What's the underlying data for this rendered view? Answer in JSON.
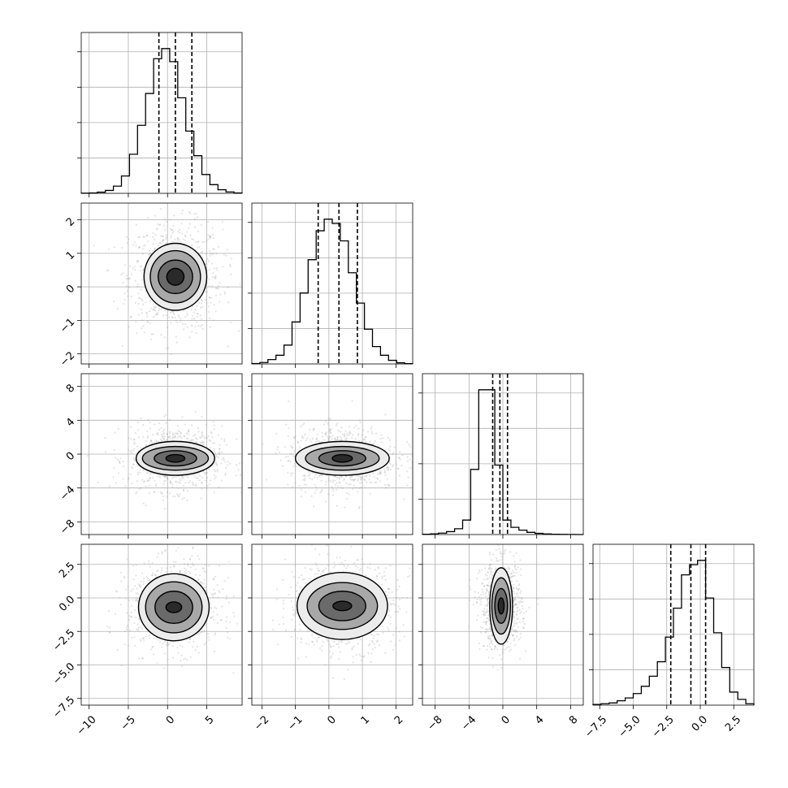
{
  "chart_data": {
    "type": "corner",
    "title": "",
    "parameters": [
      {
        "range": [
          -11,
          9.5
        ],
        "ticks": [
          -10,
          -5,
          0,
          5
        ],
        "tick_labels": [
          "−10",
          "−5",
          "0",
          "5"
        ],
        "hist": [
          0.001,
          0.003,
          0.008,
          0.02,
          0.05,
          0.12,
          0.27,
          0.47,
          0.69,
          0.93,
          1.0,
          0.91,
          0.66,
          0.43,
          0.26,
          0.13,
          0.06,
          0.025,
          0.01,
          0.003
        ],
        "quantiles": [
          -1.1,
          1.0,
          3.1
        ]
      },
      {
        "range": [
          -2.3,
          2.5
        ],
        "ticks": [
          -2,
          -1,
          0,
          1,
          2
        ],
        "tick_labels": [
          "−2",
          "−1",
          "0",
          "1",
          "2"
        ],
        "hist": [
          0.003,
          0.01,
          0.03,
          0.06,
          0.13,
          0.29,
          0.49,
          0.72,
          0.92,
          1.0,
          0.97,
          0.85,
          0.63,
          0.42,
          0.24,
          0.12,
          0.06,
          0.025,
          0.008,
          0.002
        ],
        "quantiles": [
          -0.32,
          0.3,
          0.85
        ]
      },
      {
        "range": [
          -9.5,
          9.5
        ],
        "ticks": [
          -8,
          -4,
          0,
          4,
          8
        ],
        "tick_labels": [
          "−8",
          "−4",
          "0",
          "4",
          "8"
        ],
        "hist": [
          0.002,
          0.005,
          0.01,
          0.02,
          0.04,
          0.1,
          0.45,
          1.0,
          1.0,
          0.48,
          0.1,
          0.05,
          0.03,
          0.015,
          0.008,
          0.004,
          0.002,
          0.001,
          0.0005,
          0.0002
        ],
        "quantiles": [
          -1.2,
          -0.35,
          0.55
        ]
      },
      {
        "range": [
          -8.0,
          4.0
        ],
        "ticks": [
          -7.5,
          -5.0,
          -2.5,
          0.0,
          2.5
        ],
        "tick_labels": [
          "−7.5",
          "−5.0",
          "−2.5",
          "0.0",
          "2.5"
        ],
        "hist": [
          0.005,
          0.01,
          0.015,
          0.03,
          0.05,
          0.08,
          0.13,
          0.2,
          0.3,
          0.47,
          0.67,
          0.9,
          0.97,
          1.0,
          0.74,
          0.5,
          0.26,
          0.09,
          0.04,
          0.01
        ],
        "quantiles": [
          -2.2,
          -0.7,
          0.4
        ]
      }
    ],
    "pairs": [
      {
        "row": 1,
        "col": 0,
        "center": [
          1.0,
          0.3
        ],
        "sigma": [
          2.2,
          0.6
        ],
        "levels": [
          {
            "half_width": [
              1.1,
              0.25
            ],
            "rotation": 20
          },
          {
            "half_width": [
              2.2,
              0.5
            ],
            "rotation": 0
          },
          {
            "half_width": [
              3.2,
              0.78
            ],
            "rotation": 0
          },
          {
            "half_width": [
              4.0,
              1.0
            ],
            "rotation": 0
          }
        ]
      },
      {
        "row": 2,
        "col": 0,
        "center": [
          1.0,
          -0.5
        ],
        "sigma": [
          2.2,
          1.4
        ],
        "levels": [
          {
            "half_width": [
              1.2,
              0.45
            ],
            "rotation": 0
          },
          {
            "half_width": [
              2.7,
              0.9
            ],
            "rotation": 0
          },
          {
            "half_width": [
              4.2,
              1.4
            ],
            "rotation": 0
          },
          {
            "half_width": [
              5.0,
              2.0
            ],
            "rotation": 0
          }
        ]
      },
      {
        "row": 2,
        "col": 1,
        "center": [
          0.4,
          -0.5
        ],
        "sigma": [
          0.6,
          1.4
        ],
        "levels": [
          {
            "half_width": [
              0.3,
              0.45
            ],
            "rotation": 0
          },
          {
            "half_width": [
              0.7,
              0.9
            ],
            "rotation": 0
          },
          {
            "half_width": [
              1.1,
              1.4
            ],
            "rotation": 0
          },
          {
            "half_width": [
              1.4,
              2.0
            ],
            "rotation": 0
          }
        ]
      },
      {
        "row": 3,
        "col": 0,
        "center": [
          0.8,
          -0.7
        ],
        "sigma": [
          2.2,
          1.2
        ],
        "levels": [
          {
            "half_width": [
              1.0,
              0.4
            ],
            "rotation": 0
          },
          {
            "half_width": [
              2.4,
              1.2
            ],
            "rotation": 0
          },
          {
            "half_width": [
              3.6,
              1.9
            ],
            "rotation": 0
          },
          {
            "half_width": [
              4.5,
              2.5
            ],
            "rotation": 0
          }
        ]
      },
      {
        "row": 3,
        "col": 1,
        "center": [
          0.4,
          -0.6
        ],
        "sigma": [
          0.6,
          1.2
        ],
        "levels": [
          {
            "half_width": [
              0.28,
              0.35
            ],
            "rotation": 0
          },
          {
            "half_width": [
              0.7,
              1.1
            ],
            "rotation": 0
          },
          {
            "half_width": [
              1.05,
              1.75
            ],
            "rotation": 0
          },
          {
            "half_width": [
              1.35,
              2.5
            ],
            "rotation": 0
          }
        ]
      },
      {
        "row": 3,
        "col": 2,
        "center": [
          -0.2,
          -0.6
        ],
        "sigma": [
          0.9,
          1.2
        ],
        "levels": [
          {
            "half_width": [
              0.35,
              0.6
            ],
            "rotation": 0
          },
          {
            "half_width": [
              0.75,
              1.3
            ],
            "rotation": 0
          },
          {
            "half_width": [
              1.1,
              2.1
            ],
            "rotation": 0
          },
          {
            "half_width": [
              1.35,
              2.85
            ],
            "rotation": 0
          }
        ]
      }
    ],
    "grid": true,
    "hist_style": "step",
    "quantile_style": "dashed"
  }
}
